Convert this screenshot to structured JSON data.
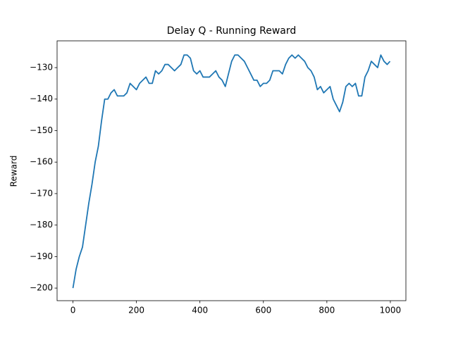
{
  "chart_data": {
    "type": "line",
    "title": "Delay Q - Running Reward",
    "ylabel": "Reward",
    "x": [
      0,
      10,
      20,
      30,
      40,
      50,
      60,
      70,
      80,
      90,
      100,
      110,
      120,
      130,
      140,
      150,
      160,
      170,
      180,
      190,
      200,
      210,
      220,
      230,
      240,
      250,
      260,
      270,
      280,
      290,
      300,
      310,
      320,
      330,
      340,
      350,
      360,
      370,
      380,
      390,
      400,
      410,
      420,
      430,
      440,
      450,
      460,
      470,
      480,
      490,
      500,
      510,
      520,
      530,
      540,
      550,
      560,
      570,
      580,
      590,
      600,
      610,
      620,
      630,
      640,
      650,
      660,
      670,
      680,
      690,
      700,
      710,
      720,
      730,
      740,
      750,
      760,
      770,
      780,
      790,
      800,
      810,
      820,
      830,
      840,
      850,
      860,
      870,
      880,
      890,
      900,
      910,
      920,
      930,
      940,
      950,
      960,
      970,
      980,
      990,
      999
    ],
    "values": [
      -200,
      -194,
      -190,
      -187,
      -180,
      -173,
      -167,
      -160,
      -155,
      -147,
      -140,
      -140,
      -138,
      -137,
      -139,
      -139,
      -139,
      -138,
      -135,
      -136,
      -137,
      -135,
      -134,
      -133,
      -135,
      -135,
      -131,
      -132,
      -131,
      -129,
      -129,
      -130,
      -131,
      -130,
      -129,
      -126,
      -126,
      -127,
      -131,
      -132,
      -131,
      -133,
      -133,
      -133,
      -132,
      -131,
      -133,
      -134,
      -136,
      -132,
      -128,
      -126,
      -126,
      -127,
      -128,
      -130,
      -132,
      -134,
      -134,
      -136,
      -135,
      -135,
      -134,
      -131,
      -131,
      -131,
      -132,
      -129,
      -127,
      -126,
      -127,
      -126,
      -127,
      -128,
      -130,
      -131,
      -133,
      -137,
      -136,
      -138,
      -137,
      -136,
      -140,
      -142,
      -144,
      -141,
      -136,
      -135,
      -136,
      -135,
      -139,
      -139,
      -133,
      -131,
      -128,
      -129,
      -130,
      -126,
      -128,
      -129,
      -128
    ],
    "color": "#1f77b4",
    "xlim": [
      -50,
      1049
    ],
    "ylim": [
      -204,
      -121.5
    ],
    "xticks": [
      0,
      200,
      400,
      600,
      800,
      1000
    ],
    "yticks": [
      {
        "value": -200,
        "label": "−200"
      },
      {
        "value": -190,
        "label": "−190"
      },
      {
        "value": -180,
        "label": "−180"
      },
      {
        "value": -170,
        "label": "−170"
      },
      {
        "value": -160,
        "label": "−160"
      },
      {
        "value": -150,
        "label": "−150"
      },
      {
        "value": -140,
        "label": "−140"
      },
      {
        "value": -130,
        "label": "−130"
      }
    ]
  }
}
